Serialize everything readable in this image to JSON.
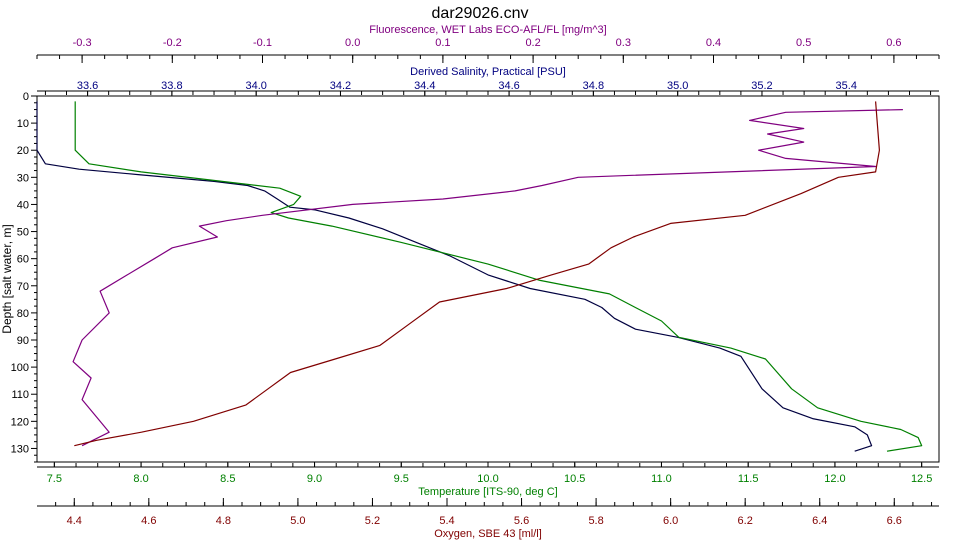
{
  "title": "dar29026.cnv",
  "chart_data": {
    "type": "line",
    "title": "dar29026.cnv",
    "y_axis": {
      "label": "Depth [salt water, m]",
      "range": [
        0,
        135
      ],
      "inverted": true,
      "ticks": [
        0,
        10,
        20,
        30,
        40,
        50,
        60,
        70,
        80,
        90,
        100,
        110,
        120,
        130
      ]
    },
    "x_axes": [
      {
        "id": "fluorescence",
        "label": "Fluorescence, WET Labs ECO-AFL/FL [mg/m^3]",
        "position": "top",
        "color": "#800080",
        "range": [
          -0.35,
          0.65
        ],
        "ticks": [
          -0.3,
          -0.2,
          -0.1,
          0.0,
          0.1,
          0.2,
          0.3,
          0.4,
          0.5,
          0.6
        ],
        "tick_labels": [
          "-0.3",
          "-0.2",
          "-0.1",
          "0.0",
          "0.1",
          "0.2",
          "0.3",
          "0.4",
          "0.5",
          "0.6"
        ]
      },
      {
        "id": "salinity",
        "label": "Derived Salinity, Practical [PSU]",
        "position": "top",
        "color": "#000080",
        "range": [
          33.48,
          35.62
        ],
        "ticks": [
          33.6,
          33.8,
          34.0,
          34.2,
          34.4,
          34.6,
          34.8,
          35.0,
          35.2,
          35.4
        ],
        "tick_labels": [
          "33.6",
          "33.8",
          "34.0",
          "34.2",
          "34.4",
          "34.6",
          "34.8",
          "35.0",
          "35.2",
          "35.4"
        ]
      },
      {
        "id": "temperature",
        "label": "Temperature [ITS-90, deg C]",
        "position": "bottom",
        "color": "#008000",
        "range": [
          7.4,
          12.6
        ],
        "ticks": [
          7.5,
          8.0,
          8.5,
          9.0,
          9.5,
          10.0,
          10.5,
          11.0,
          11.5,
          12.0,
          12.5
        ],
        "tick_labels": [
          "7.5",
          "8.0",
          "8.5",
          "9.0",
          "9.5",
          "10.0",
          "10.5",
          "11.0",
          "11.5",
          "12.0",
          "12.5"
        ]
      },
      {
        "id": "oxygen",
        "label": "Oxygen, SBE 43 [ml/l]",
        "position": "bottom",
        "color": "#800000",
        "range": [
          4.3,
          6.72
        ],
        "ticks": [
          4.4,
          4.6,
          4.8,
          5.0,
          5.2,
          5.4,
          5.6,
          5.8,
          6.0,
          6.2,
          6.4,
          6.6
        ],
        "tick_labels": [
          "4.4",
          "4.6",
          "4.8",
          "5.0",
          "5.2",
          "5.4",
          "5.6",
          "5.8",
          "6.0",
          "6.2",
          "6.4",
          "6.6"
        ]
      }
    ],
    "series": [
      {
        "axis": "salinity",
        "color": "#000040",
        "points": [
          [
            33.48,
            2
          ],
          [
            33.48,
            20
          ],
          [
            33.5,
            25
          ],
          [
            33.58,
            27
          ],
          [
            33.72,
            29
          ],
          [
            33.9,
            31.5
          ],
          [
            33.98,
            33
          ],
          [
            34.02,
            35
          ],
          [
            34.05,
            38
          ],
          [
            34.08,
            41
          ],
          [
            34.14,
            42
          ],
          [
            34.22,
            45
          ],
          [
            34.3,
            49
          ],
          [
            34.38,
            54
          ],
          [
            34.46,
            59
          ],
          [
            34.55,
            66
          ],
          [
            34.65,
            71
          ],
          [
            34.78,
            75
          ],
          [
            34.82,
            78
          ],
          [
            34.85,
            82
          ],
          [
            34.9,
            86
          ],
          [
            35.0,
            89
          ],
          [
            35.1,
            93
          ],
          [
            35.15,
            96
          ],
          [
            35.2,
            108
          ],
          [
            35.25,
            115
          ],
          [
            35.32,
            119
          ],
          [
            35.42,
            122
          ],
          [
            35.45,
            125
          ],
          [
            35.46,
            129
          ],
          [
            35.42,
            131
          ]
        ]
      },
      {
        "axis": "temperature",
        "color": "#008000",
        "points": [
          [
            7.62,
            2
          ],
          [
            7.62,
            20
          ],
          [
            7.7,
            25
          ],
          [
            8.0,
            28
          ],
          [
            8.4,
            31
          ],
          [
            8.8,
            34
          ],
          [
            8.92,
            37
          ],
          [
            8.88,
            40
          ],
          [
            8.75,
            43
          ],
          [
            8.85,
            45
          ],
          [
            9.1,
            48
          ],
          [
            9.5,
            54
          ],
          [
            10.0,
            62
          ],
          [
            10.3,
            68
          ],
          [
            10.7,
            73
          ],
          [
            10.85,
            78
          ],
          [
            11.0,
            83
          ],
          [
            11.1,
            89
          ],
          [
            11.4,
            93
          ],
          [
            11.6,
            97
          ],
          [
            11.75,
            108
          ],
          [
            11.9,
            115
          ],
          [
            12.15,
            120
          ],
          [
            12.38,
            123
          ],
          [
            12.48,
            126
          ],
          [
            12.5,
            129
          ],
          [
            12.3,
            131
          ]
        ]
      },
      {
        "axis": "fluorescence",
        "color": "#800080",
        "points": [
          [
            0.61,
            5
          ],
          [
            0.48,
            6
          ],
          [
            0.44,
            9
          ],
          [
            0.5,
            12
          ],
          [
            0.46,
            14
          ],
          [
            0.5,
            17
          ],
          [
            0.45,
            20
          ],
          [
            0.48,
            23
          ],
          [
            0.58,
            26
          ],
          [
            0.25,
            30
          ],
          [
            0.21,
            33
          ],
          [
            0.18,
            35
          ],
          [
            0.1,
            38
          ],
          [
            0.0,
            40
          ],
          [
            -0.1,
            44
          ],
          [
            -0.14,
            46
          ],
          [
            -0.17,
            48
          ],
          [
            -0.15,
            52
          ],
          [
            -0.2,
            56
          ],
          [
            -0.22,
            60
          ],
          [
            -0.25,
            66
          ],
          [
            -0.28,
            72
          ],
          [
            -0.27,
            80
          ],
          [
            -0.3,
            90
          ],
          [
            -0.31,
            98
          ],
          [
            -0.29,
            104
          ],
          [
            -0.3,
            112
          ],
          [
            -0.28,
            120
          ],
          [
            -0.27,
            124
          ],
          [
            -0.3,
            129
          ]
        ]
      },
      {
        "axis": "oxygen",
        "color": "#800000",
        "points": [
          [
            6.55,
            2
          ],
          [
            6.56,
            20
          ],
          [
            6.55,
            28
          ],
          [
            6.45,
            30
          ],
          [
            6.35,
            36
          ],
          [
            6.2,
            44
          ],
          [
            6.0,
            47
          ],
          [
            5.9,
            52
          ],
          [
            5.84,
            56
          ],
          [
            5.78,
            62
          ],
          [
            5.68,
            66
          ],
          [
            5.56,
            71
          ],
          [
            5.38,
            76
          ],
          [
            5.3,
            84
          ],
          [
            5.22,
            92
          ],
          [
            5.1,
            97
          ],
          [
            4.98,
            102
          ],
          [
            4.92,
            108
          ],
          [
            4.86,
            114
          ],
          [
            4.72,
            120
          ],
          [
            4.58,
            124
          ],
          [
            4.46,
            127
          ],
          [
            4.4,
            129
          ]
        ]
      }
    ]
  }
}
